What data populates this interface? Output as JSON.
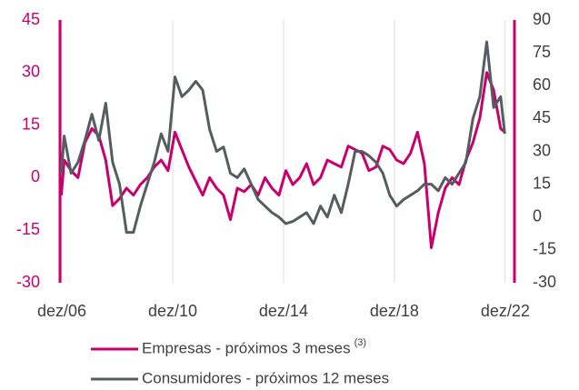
{
  "chart_data": {
    "type": "line",
    "x": [
      2006.9,
      2007.0,
      2007.25,
      2007.5,
      2007.75,
      2008.0,
      2008.25,
      2008.5,
      2008.75,
      2009.0,
      2009.25,
      2009.5,
      2009.75,
      2010.0,
      2010.25,
      2010.5,
      2010.75,
      2011.0,
      2011.25,
      2011.5,
      2011.75,
      2012.0,
      2012.25,
      2012.5,
      2012.75,
      2013.0,
      2013.25,
      2013.5,
      2013.75,
      2014.0,
      2014.25,
      2014.5,
      2014.75,
      2015.0,
      2015.25,
      2015.5,
      2015.75,
      2016.0,
      2016.25,
      2016.5,
      2016.75,
      2017.0,
      2017.25,
      2017.5,
      2017.75,
      2018.0,
      2018.25,
      2018.5,
      2018.75,
      2019.0,
      2019.25,
      2019.5,
      2019.75,
      2020.0,
      2020.25,
      2020.5,
      2020.75,
      2021.0,
      2021.25,
      2021.5,
      2021.75,
      2022.0,
      2022.25,
      2022.5,
      2022.75,
      2022.9
    ],
    "series": [
      {
        "name": "Empresas - próximos 3 meses",
        "legend_note": "(3)",
        "color": "#c8006e",
        "axis": "y",
        "values": [
          -5,
          5,
          2,
          0,
          10,
          14,
          12,
          5,
          -8,
          -6,
          -3,
          -5,
          -2,
          0,
          3,
          5,
          2,
          13,
          8,
          3,
          -1,
          -5,
          0,
          -3,
          -5,
          -12,
          -3,
          -4,
          -2,
          -5,
          0,
          -3,
          -5,
          2,
          -2,
          0,
          4,
          -2,
          0,
          5,
          4,
          3,
          9,
          8,
          7,
          2,
          3,
          9,
          8,
          5,
          4,
          7,
          13,
          4,
          -20,
          -10,
          -3,
          0,
          -2,
          5,
          10,
          17,
          30,
          25,
          14,
          13
        ]
      },
      {
        "name": "Consumidores - próximos 12 meses",
        "color": "#555d5f",
        "axis": "y2",
        "values": [
          20,
          37,
          20,
          25,
          35,
          47,
          35,
          52,
          25,
          15,
          -7,
          -7,
          5,
          15,
          25,
          38,
          30,
          64,
          55,
          58,
          62,
          58,
          40,
          30,
          32,
          20,
          18,
          22,
          15,
          8,
          5,
          2,
          0,
          -3,
          -2,
          0,
          2,
          -3,
          5,
          0,
          10,
          2,
          15,
          30,
          30,
          28,
          25,
          20,
          10,
          5,
          8,
          10,
          12,
          15,
          15,
          12,
          18,
          15,
          20,
          25,
          45,
          55,
          80,
          50,
          55,
          38
        ]
      }
    ],
    "xlim": [
      2006.85,
      2023.25
    ],
    "xticks": [
      {
        "value": 2006.917,
        "label": "dez/06"
      },
      {
        "value": 2010.917,
        "label": "dez/10"
      },
      {
        "value": 2014.917,
        "label": "dez/14"
      },
      {
        "value": 2018.917,
        "label": "dez/18"
      },
      {
        "value": 2022.917,
        "label": "dez/22"
      }
    ],
    "ylim": [
      -30,
      45
    ],
    "yticks": [
      -30,
      -15,
      0,
      15,
      30,
      45
    ],
    "y2lim": [
      -30,
      90
    ],
    "y2ticks": [
      -30,
      -15,
      0,
      15,
      30,
      45,
      60,
      75,
      90
    ],
    "grid": true
  }
}
